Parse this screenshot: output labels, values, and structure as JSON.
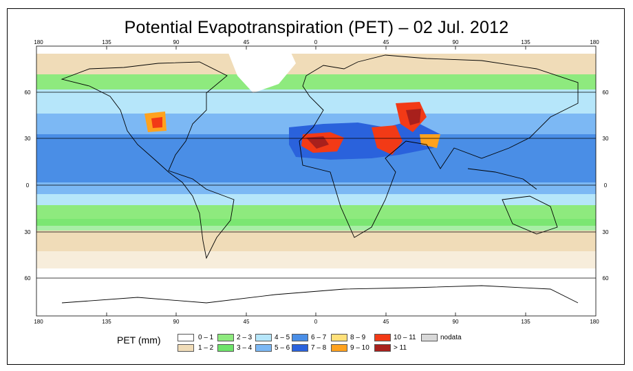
{
  "title": "Potential Evapotranspiration (PET) – 02 Jul. 2012",
  "map": {
    "lon_ticks": [
      "180",
      "135",
      "90",
      "45",
      "0",
      "45",
      "90",
      "135",
      "180"
    ],
    "lat_ticks_left": [
      "60",
      "30",
      "0",
      "30",
      "60"
    ],
    "lat_ticks_right": [
      "60",
      "30",
      "0",
      "30",
      "60"
    ]
  },
  "legend": {
    "title": "PET (mm)",
    "items": [
      {
        "label": "0 – 1",
        "color": "#ffffff"
      },
      {
        "label": "1 – 2",
        "color": "#f0dcb8"
      },
      {
        "label": "2 – 3",
        "color": "#8eea7e"
      },
      {
        "label": "3 – 4",
        "color": "#6ee36a"
      },
      {
        "label": "4 – 5",
        "color": "#b6e6fa"
      },
      {
        "label": "5 – 6",
        "color": "#7cb8f4"
      },
      {
        "label": "6 – 7",
        "color": "#4a8ee6"
      },
      {
        "label": "7 – 8",
        "color": "#2a62dc"
      },
      {
        "label": "8 – 9",
        "color": "#ffe07a"
      },
      {
        "label": "9 – 10",
        "color": "#ffa21e"
      },
      {
        "label": "10 – 11",
        "color": "#f23a16"
      },
      {
        "label": "> 11",
        "color": "#a8201c"
      },
      {
        "label": "nodata",
        "color": "#d8d8d8"
      }
    ]
  }
}
